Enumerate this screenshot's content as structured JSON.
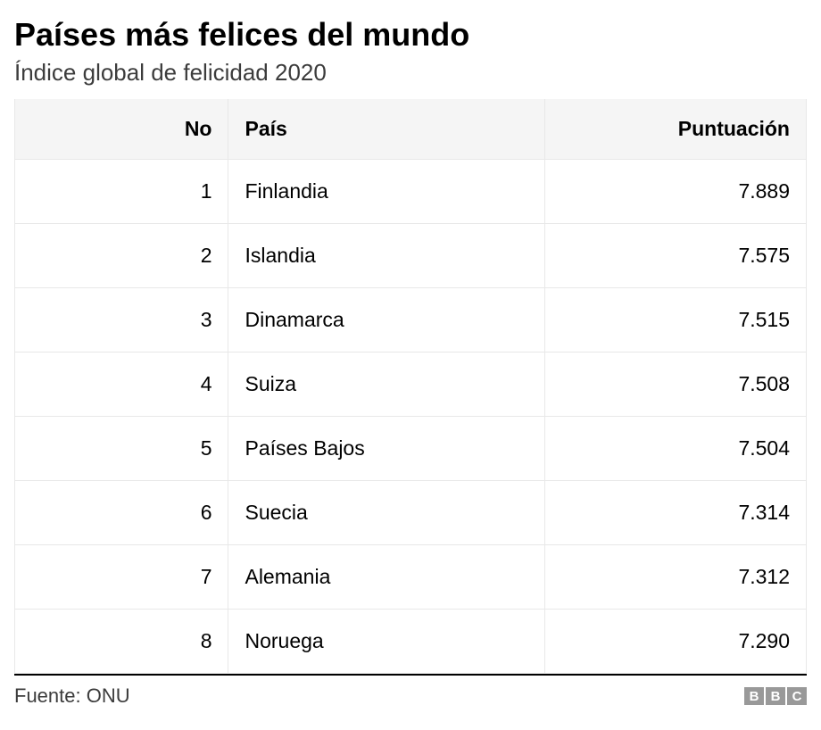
{
  "title": "Países más felices del mundo",
  "subtitle": "Índice global de felicidad 2020",
  "table": {
    "type": "table",
    "columns": {
      "no": "No",
      "country": "País",
      "score": "Puntuación"
    },
    "column_alignment": {
      "no": "right",
      "country": "left",
      "score": "right"
    },
    "rows": [
      {
        "no": "1",
        "country": "Finlandia",
        "score": "7.889"
      },
      {
        "no": "2",
        "country": "Islandia",
        "score": "7.575"
      },
      {
        "no": "3",
        "country": "Dinamarca",
        "score": "7.515"
      },
      {
        "no": "4",
        "country": "Suiza",
        "score": "7.508"
      },
      {
        "no": "5",
        "country": "Países Bajos",
        "score": "7.504"
      },
      {
        "no": "6",
        "country": "Suecia",
        "score": "7.314"
      },
      {
        "no": "7",
        "country": "Alemania",
        "score": "7.312"
      },
      {
        "no": "8",
        "country": "Noruega",
        "score": "7.290"
      }
    ],
    "header_bg_color": "#f5f5f5",
    "border_color": "#e8e8e8",
    "cell_font_size": 23,
    "header_font_weight": "bold"
  },
  "footer": {
    "source_label": "Fuente: ONU",
    "logo_letters": [
      "B",
      "B",
      "C"
    ],
    "logo_box_color": "#999999",
    "logo_text_color": "#ffffff"
  },
  "colors": {
    "background": "#ffffff",
    "title_color": "#000000",
    "subtitle_color": "#3c3c3c",
    "footer_border": "#000000"
  },
  "typography": {
    "title_fontsize": 36,
    "subtitle_fontsize": 26,
    "source_fontsize": 22,
    "font_family": "Arial"
  }
}
